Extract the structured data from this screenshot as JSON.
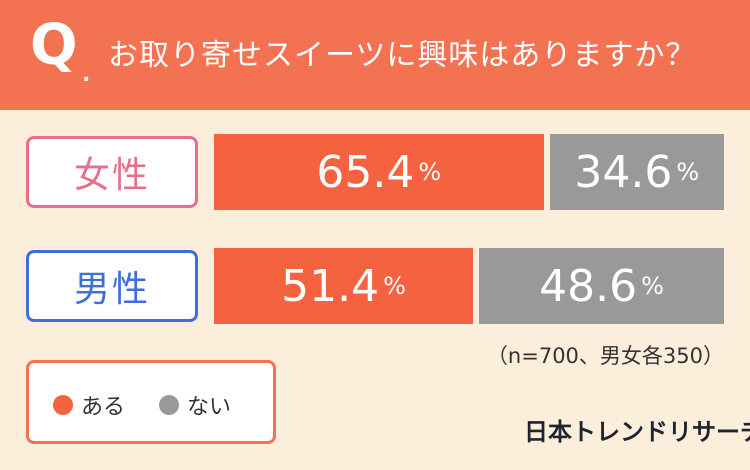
{
  "question": {
    "prefix": "Q",
    "dot": ".",
    "text": "お取り寄せスイーツに興味はありますか？"
  },
  "chart_data": {
    "type": "bar",
    "stacked": true,
    "orientation": "horizontal",
    "categories": [
      "女性",
      "男性"
    ],
    "series": [
      {
        "name": "ある",
        "values": [
          65.4,
          51.4
        ],
        "color": "#f4623f"
      },
      {
        "name": "ない",
        "values": [
          34.6,
          48.6
        ],
        "color": "#999999"
      }
    ],
    "value_suffix": "%",
    "category_colors": [
      "#e76f8e",
      "#3d6fd6"
    ]
  },
  "legend": [
    {
      "label": "ある",
      "color": "#f4623f"
    },
    {
      "label": "ない",
      "color": "#999999"
    }
  ],
  "note": "（n=700、男女各350）",
  "brand": "日本トレンドリサーチ",
  "colors": {
    "accent": "#f37252",
    "background": "#fbefdc"
  }
}
